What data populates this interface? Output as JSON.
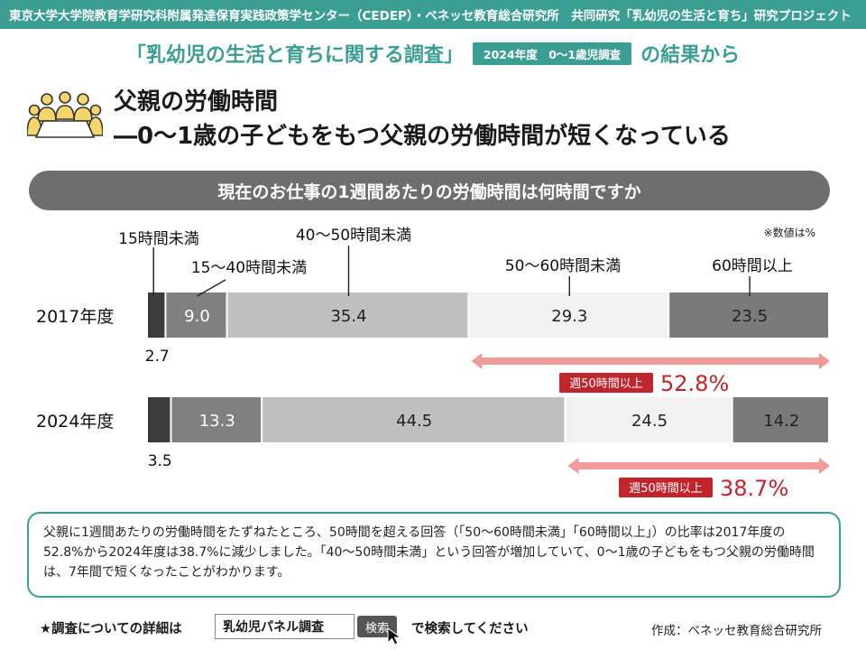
{
  "header": {
    "banner": "東京大学大学院教育学研究科附属発達保育実践政策学センター（CEDEP）・ベネッセ教育総合研究所　共同研究「乳幼児の生活と育ち」研究プロジェクト",
    "survey_title": "「乳幼児の生活と育ちに関する調査」",
    "survey_badge": "2024年度　0～1歳児調査",
    "survey_suffix": "の結果から"
  },
  "heading": {
    "title": "父親の労働時間",
    "subtitle": "―0～1歳の子どもをもつ父親の労働時間が短くなっている"
  },
  "question": "現在のお仕事の1週間あたりの労働時間は何時間ですか",
  "chart_data": {
    "type": "bar",
    "orientation": "horizontal-stacked-100",
    "unit_note": "※数値は%",
    "categories": [
      "2017年度",
      "2024年度"
    ],
    "series": [
      {
        "name": "15時間未満",
        "values": [
          2.7,
          3.5
        ]
      },
      {
        "name": "15～40時間未満",
        "values": [
          9.0,
          13.3
        ]
      },
      {
        "name": "40～50時間未満",
        "values": [
          35.4,
          44.5
        ]
      },
      {
        "name": "50～60時間未満",
        "values": [
          29.3,
          24.5
        ]
      },
      {
        "name": "60時間以上",
        "values": [
          23.5,
          14.2
        ]
      }
    ],
    "value_labels": [
      [
        "2.7",
        "9.0",
        "35.4",
        "29.3",
        "23.5"
      ],
      [
        "3.5",
        "13.3",
        "44.5",
        "24.5",
        "14.2"
      ]
    ],
    "series_colors": [
      "#3c3c3c",
      "#808080",
      "#c0c0c0",
      "#f1f1f1",
      "#7a7a7a"
    ],
    "annotations": [
      {
        "label": "週50時間以上",
        "value": "52.8%"
      },
      {
        "label": "週50時間以上",
        "value": "38.7%"
      }
    ],
    "annotation_color": "#c0242d",
    "arrow_color": "#f09a9a"
  },
  "summary": "父親に1週間あたりの労働時間をたずねたところ、50時間を超える回答（「50～60時間未満」「60時間以上」）の比率は2017年度の52.8%から2024年度は38.7%に減少しました。「40～50時間未満」という回答が増加していて、0～1歳の子どもをもつ父親の労働時間は、7年間で短くなったことがわかります。",
  "footer": {
    "lead": "★調査についての詳細は",
    "search_value": "乳幼児パネル調査",
    "search_button": "検索",
    "trail": "で検索してください",
    "credit": "作成：ベネッセ教育総合研究所"
  },
  "colors": {
    "accent": "#3a9e93",
    "question_bg": "#6e6e6e",
    "icon_fill": "#f3d56b"
  }
}
